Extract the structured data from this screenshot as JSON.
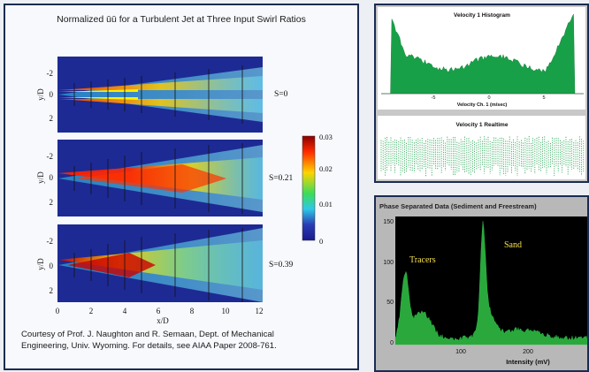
{
  "left": {
    "title": "Normalized ūū for a Turbulent Jet at Three Input Swirl Ratios",
    "credit_line1": "Courtesy of Prof. J. Naughton and R. Semaan, Dept. of Mechanical",
    "credit_line2": "Engineering, Univ. Wyoming.  For details, see AIAA Paper 2008-761.",
    "plots": [
      {
        "label": "S=0"
      },
      {
        "label": "S=0.21"
      },
      {
        "label": "S=0.39"
      }
    ],
    "y_tick_labels": [
      "-2",
      "0",
      "2"
    ],
    "y_axis_label": "y/D",
    "x_axis_label": "x/D",
    "x_tick_labels": [
      "0",
      "2",
      "4",
      "6",
      "8",
      "10",
      "12"
    ],
    "colorbar": {
      "tick_labels": [
        "0.03",
        "0.02",
        "0.01",
        "0"
      ],
      "colors": [
        "#8b0000",
        "#ff2a00",
        "#ffd400",
        "#3cdc5a",
        "#2fc8e6",
        "#2a3cb4",
        "#1a1a8c"
      ]
    }
  },
  "velocity": {
    "histogram_title": "Velocity 1 Histogram",
    "histogram_xlabel": "Velocity Ch. 1 (m/sec)",
    "histogram_ticks": [
      "-5",
      "0",
      "5"
    ],
    "realtime_title": "Velocity 1 Realtime",
    "series_color": "#18a048"
  },
  "phase": {
    "title": "Phase Separated Data (Sediment and Freestream)",
    "annotation_tracers": "Tracers",
    "annotation_sand": "Sand",
    "xlabel": "Intensity (mV)",
    "y_tick_labels": [
      "150",
      "100",
      "50",
      "0"
    ],
    "x_tick_labels": [
      "100",
      "200"
    ],
    "series_color": "#2aa83c"
  }
}
